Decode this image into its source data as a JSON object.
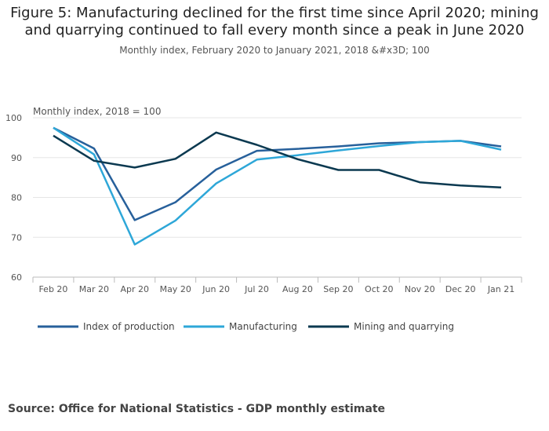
{
  "title_line1": "Figure 5: Manufacturing declined for the first time since April 2020; mining",
  "title_line2": "and quarrying continued to fall every month since a peak in June 2020",
  "subtitle": "Monthly index, February 2020 to January 2021, 2018 &#x3D; 100",
  "source": "Source: Office for National Statistics - GDP monthly estimate",
  "chart_data": {
    "type": "line",
    "ylabel": "Monthly index, 2018 = 100",
    "categories": [
      "Feb 20",
      "Mar 20",
      "Apr 20",
      "May 20",
      "Jun 20",
      "Jul 20",
      "Aug 20",
      "Sep 20",
      "Oct 20",
      "Nov 20",
      "Dec 20",
      "Jan 21"
    ],
    "ylim": [
      60,
      100
    ],
    "yticks": [
      60,
      70,
      80,
      90,
      100
    ],
    "grid": true,
    "legend_position": "bottom",
    "series": [
      {
        "name": "Index of production",
        "color": "#27609b",
        "values": [
          97.5,
          92.3,
          74.3,
          78.8,
          87.0,
          91.7,
          92.2,
          92.8,
          93.6,
          93.9,
          94.2,
          92.8
        ]
      },
      {
        "name": "Manufacturing",
        "color": "#2ea7d8",
        "values": [
          97.5,
          90.8,
          68.2,
          74.2,
          83.5,
          89.5,
          90.6,
          91.8,
          92.9,
          93.9,
          94.2,
          92.0
        ]
      },
      {
        "name": "Mining and quarrying",
        "color": "#0b3950",
        "values": [
          95.5,
          89.2,
          87.5,
          89.7,
          96.3,
          93.2,
          89.6,
          86.9,
          86.9,
          83.8,
          83.0,
          82.5
        ]
      }
    ]
  }
}
